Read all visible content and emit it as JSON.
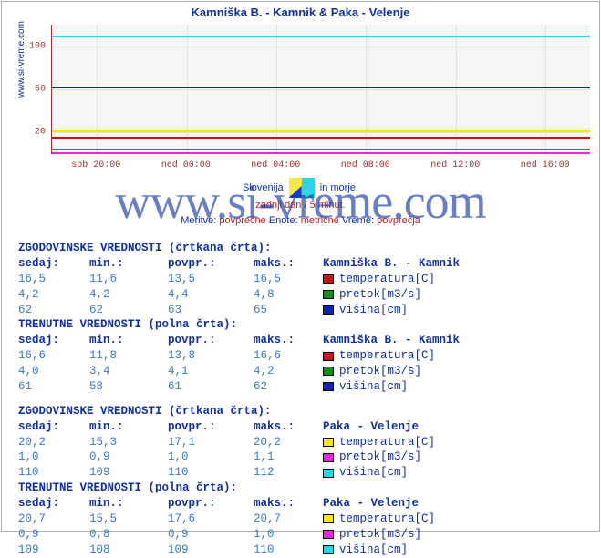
{
  "title": "Kamniška B. - Kamnik & Paka - Velenje",
  "ylabel": "www.si-vreme.com",
  "watermark": "www.si-vreme.com",
  "chart": {
    "type": "line",
    "background_color": "#f6f6f6",
    "grid_color": "#e2e2e2",
    "axis_color": "#a03030",
    "ylim": [
      0,
      120
    ],
    "yticks": [
      20,
      60,
      100
    ],
    "xticks": [
      "sob 20:00",
      "ned 00:00",
      "ned 04:00",
      "ned 08:00",
      "ned 12:00",
      "ned 16:00"
    ],
    "series": [
      {
        "name": "višina-paka",
        "value": 110,
        "color": "#22d9e2",
        "width": 2
      },
      {
        "name": "višina-kamniska",
        "value": 62,
        "color": "#1020b0",
        "width": 2
      },
      {
        "name": "temperatura-paka",
        "value": 21,
        "color": "#f5e614",
        "width": 2
      },
      {
        "name": "temperatura-kamniska",
        "value": 15,
        "color": "#c01818",
        "width": 2
      },
      {
        "name": "pretok-kamniska",
        "value": 4,
        "color": "#109020",
        "width": 2
      },
      {
        "name": "pretok-paka",
        "value": 1,
        "color": "#e828d8",
        "width": 2
      }
    ]
  },
  "caption": {
    "line1_a": "Slovenija",
    "line1_b": "in morje.",
    "line2": "zadnji dan / 5 minut.",
    "line3_a": "Meritve:",
    "line3_b": "povprečne",
    "line3_c": "Enote:",
    "line3_d": "metrične",
    "line3_e": "Vreme:",
    "line3_f": "povprečja"
  },
  "headers": {
    "sedaj": "sedaj:",
    "min": "min.:",
    "povpr": "povpr.:",
    "maks": "maks.:"
  },
  "legend_labels": {
    "temp": "temperatura[C]",
    "pretok": "pretok[m3/s]",
    "visina": "višina[cm]"
  },
  "swatches": {
    "kamniska_temp": "#c01818",
    "kamniska_pretok": "#109020",
    "kamniska_visina": "#1020b0",
    "paka_temp": "#f5e614",
    "paka_pretok": "#e828d8",
    "paka_visina": "#22d9e2"
  },
  "blocks": [
    {
      "title": "ZGODOVINSKE VREDNOSTI (črtkana črta):",
      "station": "Kamniška B. - Kamnik",
      "sw": "kamniska",
      "rows": [
        {
          "sedaj": "16,5",
          "min": "11,6",
          "povpr": "13,5",
          "maks": "16,5",
          "leg": "temp"
        },
        {
          "sedaj": "4,2",
          "min": "4,2",
          "povpr": "4,4",
          "maks": "4,8",
          "leg": "pretok"
        },
        {
          "sedaj": "62",
          "min": "62",
          "povpr": "63",
          "maks": "65",
          "leg": "visina"
        }
      ]
    },
    {
      "title": "TRENUTNE VREDNOSTI (polna črta):",
      "station": "Kamniška B. - Kamnik",
      "sw": "kamniska",
      "rows": [
        {
          "sedaj": "16,6",
          "min": "11,8",
          "povpr": "13,8",
          "maks": "16,6",
          "leg": "temp"
        },
        {
          "sedaj": "4,0",
          "min": "3,4",
          "povpr": "4,1",
          "maks": "4,2",
          "leg": "pretok"
        },
        {
          "sedaj": "61",
          "min": "58",
          "povpr": "61",
          "maks": "62",
          "leg": "visina"
        }
      ]
    },
    {
      "title": "ZGODOVINSKE VREDNOSTI (črtkana črta):",
      "station": "Paka - Velenje",
      "sw": "paka",
      "rows": [
        {
          "sedaj": "20,2",
          "min": "15,3",
          "povpr": "17,1",
          "maks": "20,2",
          "leg": "temp"
        },
        {
          "sedaj": "1,0",
          "min": "0,9",
          "povpr": "1,0",
          "maks": "1,1",
          "leg": "pretok"
        },
        {
          "sedaj": "110",
          "min": "109",
          "povpr": "110",
          "maks": "112",
          "leg": "visina"
        }
      ]
    },
    {
      "title": "TRENUTNE VREDNOSTI (polna črta):",
      "station": "Paka - Velenje",
      "sw": "paka",
      "rows": [
        {
          "sedaj": "20,7",
          "min": "15,5",
          "povpr": "17,6",
          "maks": "20,7",
          "leg": "temp"
        },
        {
          "sedaj": "0,9",
          "min": "0,8",
          "povpr": "0,9",
          "maks": "1,0",
          "leg": "pretok"
        },
        {
          "sedaj": "109",
          "min": "108",
          "povpr": "109",
          "maks": "110",
          "leg": "visina"
        }
      ]
    }
  ]
}
